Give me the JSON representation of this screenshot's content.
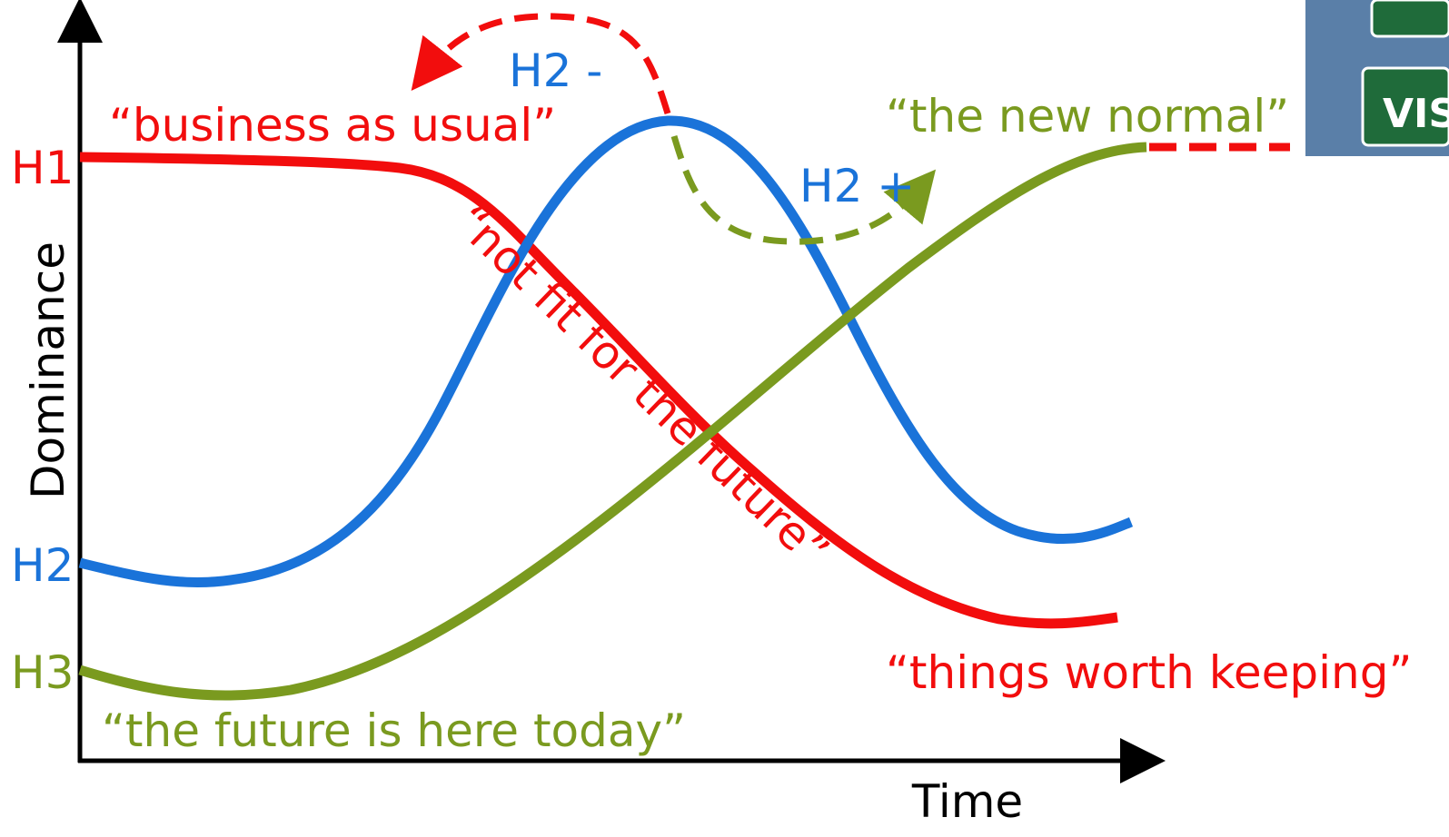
{
  "y_axis_label": "Dominance",
  "x_axis_label": "Time",
  "horizon_labels": [
    "H1",
    "H2",
    "H3"
  ],
  "annotations": {
    "h1_start": "“business as usual”",
    "h1_mid": "“not fit for the future”",
    "h1_end": "“things worth keeping”",
    "h3_start": "“the future is here today”",
    "h3_end": "“the new normal”",
    "h2_minus": "H2 -",
    "h2_plus": "H2 +"
  },
  "image_text": "VIS"
}
